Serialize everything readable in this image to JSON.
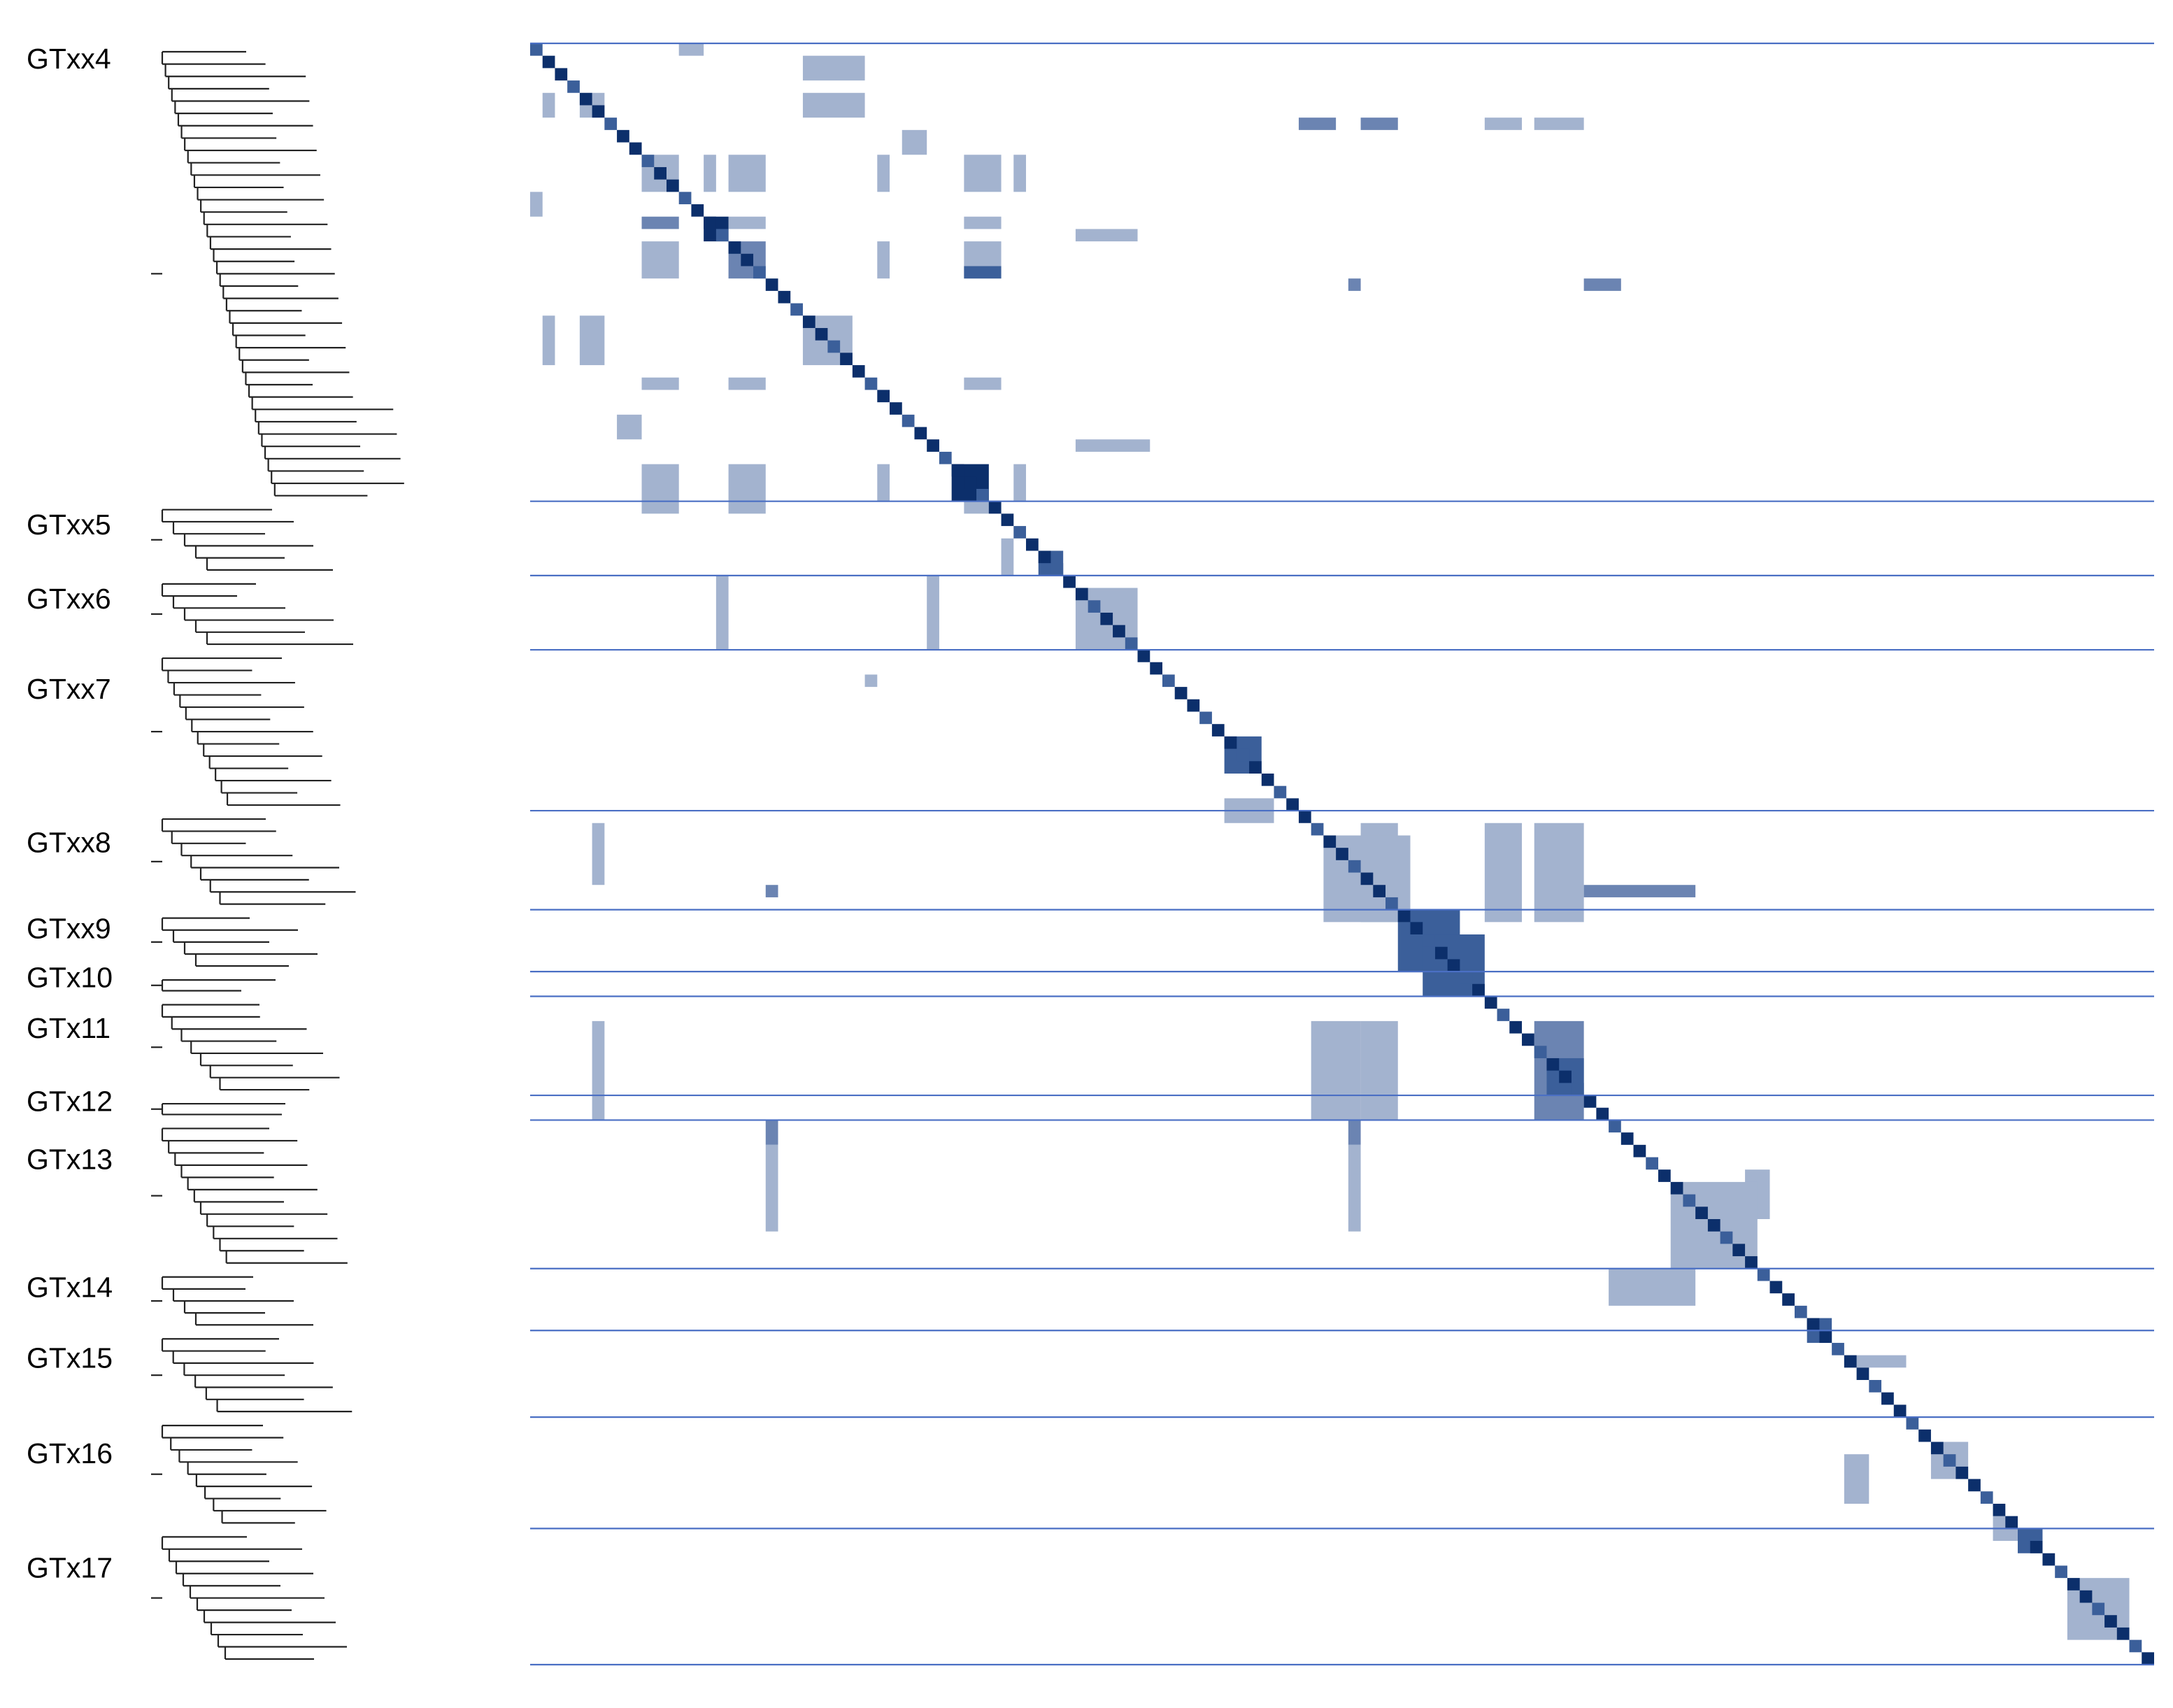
{
  "chart_data": {
    "type": "heatmap",
    "colors": {
      "strong": "#0c2f6b",
      "medium": "#3b5f9a",
      "light": "#6b84b2",
      "pale": "#a3b3cf",
      "separator": "#4a6fc4",
      "tree": "#222222"
    },
    "families": [
      {
        "label": "GTxx4",
        "members": 37
      },
      {
        "label": "GTxx5",
        "members": 6
      },
      {
        "label": "GTxx6",
        "members": 6
      },
      {
        "label": "GTxx7",
        "members": 13
      },
      {
        "label": "GTxx8",
        "members": 8
      },
      {
        "label": "GTxx9",
        "members": 5
      },
      {
        "label": "GTx10",
        "members": 2
      },
      {
        "label": "GTx11",
        "members": 8
      },
      {
        "label": "GTx12",
        "members": 2
      },
      {
        "label": "GTx13",
        "members": 12
      },
      {
        "label": "GTx14",
        "members": 5
      },
      {
        "label": "GTx15",
        "members": 7
      },
      {
        "label": "GTx16",
        "members": 9
      },
      {
        "label": "GTx17",
        "members": 11
      }
    ],
    "diagonal_blocks": [
      {
        "rows": [
          14,
          16
        ],
        "level": "strong"
      },
      {
        "rows": [
          34,
          37
        ],
        "level": "strong"
      },
      {
        "rows": [
          41,
          43
        ],
        "level": "medium"
      },
      {
        "rows": [
          44,
          49
        ],
        "level": "pale"
      },
      {
        "rows": [
          56,
          59
        ],
        "level": "medium"
      },
      {
        "rows": [
          64,
          71
        ],
        "level": "pale"
      },
      {
        "rows": [
          70,
          75
        ],
        "level": "medium"
      },
      {
        "rows": [
          72,
          77
        ],
        "level": "medium"
      },
      {
        "rows": [
          82,
          85
        ],
        "level": "medium"
      },
      {
        "rows": [
          92,
          99
        ],
        "level": "pale"
      },
      {
        "rows": [
          103,
          105
        ],
        "level": "medium"
      },
      {
        "rows": [
          113,
          116
        ],
        "level": "pale"
      },
      {
        "rows": [
          120,
          122
        ],
        "level": "medium"
      },
      {
        "rows": [
          124,
          129
        ],
        "level": "pale"
      }
    ],
    "off_diagonal_blocks": [
      {
        "rows": [
          0,
          1
        ],
        "cols": [
          12,
          14
        ],
        "level": "pale"
      },
      {
        "rows": [
          1,
          3
        ],
        "cols": [
          22,
          27
        ],
        "level": "pale"
      },
      {
        "rows": [
          4,
          6
        ],
        "cols": [
          22,
          27
        ],
        "level": "pale"
      },
      {
        "rows": [
          4,
          6
        ],
        "cols": [
          1,
          2
        ],
        "level": "pale"
      },
      {
        "rows": [
          4,
          6
        ],
        "cols": [
          4,
          6
        ],
        "level": "pale"
      },
      {
        "rows": [
          6,
          7
        ],
        "cols": [
          62,
          65
        ],
        "level": "light"
      },
      {
        "rows": [
          6,
          7
        ],
        "cols": [
          67,
          70
        ],
        "level": "light"
      },
      {
        "rows": [
          6,
          7
        ],
        "cols": [
          77,
          80
        ],
        "level": "pale"
      },
      {
        "rows": [
          6,
          7
        ],
        "cols": [
          81,
          85
        ],
        "level": "pale"
      },
      {
        "rows": [
          7,
          9
        ],
        "cols": [
          30,
          32
        ],
        "level": "pale"
      },
      {
        "rows": [
          9,
          12
        ],
        "cols": [
          9,
          12
        ],
        "level": "pale"
      },
      {
        "rows": [
          9,
          12
        ],
        "cols": [
          14,
          15
        ],
        "level": "pale"
      },
      {
        "rows": [
          9,
          12
        ],
        "cols": [
          16,
          19
        ],
        "level": "pale"
      },
      {
        "rows": [
          9,
          12
        ],
        "cols": [
          28,
          29
        ],
        "level": "pale"
      },
      {
        "rows": [
          9,
          12
        ],
        "cols": [
          35,
          38
        ],
        "level": "pale"
      },
      {
        "rows": [
          9,
          12
        ],
        "cols": [
          39,
          40
        ],
        "level": "pale"
      },
      {
        "rows": [
          12,
          14
        ],
        "cols": [
          0,
          1
        ],
        "level": "pale"
      },
      {
        "rows": [
          14,
          15
        ],
        "cols": [
          9,
          12
        ],
        "level": "light"
      },
      {
        "rows": [
          14,
          15
        ],
        "cols": [
          16,
          19
        ],
        "level": "pale"
      },
      {
        "rows": [
          14,
          15
        ],
        "cols": [
          35,
          38
        ],
        "level": "pale"
      },
      {
        "rows": [
          15,
          16
        ],
        "cols": [
          44,
          49
        ],
        "level": "pale"
      },
      {
        "rows": [
          16,
          19
        ],
        "cols": [
          9,
          12
        ],
        "level": "pale"
      },
      {
        "rows": [
          16,
          19
        ],
        "cols": [
          16,
          19
        ],
        "level": "light"
      },
      {
        "rows": [
          16,
          19
        ],
        "cols": [
          28,
          29
        ],
        "level": "pale"
      },
      {
        "rows": [
          16,
          19
        ],
        "cols": [
          35,
          38
        ],
        "level": "pale"
      },
      {
        "rows": [
          18,
          19
        ],
        "cols": [
          35,
          38
        ],
        "level": "medium"
      },
      {
        "rows": [
          19,
          20
        ],
        "cols": [
          66,
          67
        ],
        "level": "light"
      },
      {
        "rows": [
          19,
          20
        ],
        "cols": [
          85,
          88
        ],
        "level": "light"
      },
      {
        "rows": [
          22,
          26
        ],
        "cols": [
          1,
          2
        ],
        "level": "pale"
      },
      {
        "rows": [
          22,
          26
        ],
        "cols": [
          4,
          6
        ],
        "level": "pale"
      },
      {
        "rows": [
          22,
          26
        ],
        "cols": [
          22,
          26
        ],
        "level": "pale"
      },
      {
        "rows": [
          27,
          28
        ],
        "cols": [
          9,
          12
        ],
        "level": "pale"
      },
      {
        "rows": [
          27,
          28
        ],
        "cols": [
          16,
          19
        ],
        "level": "pale"
      },
      {
        "rows": [
          27,
          28
        ],
        "cols": [
          35,
          38
        ],
        "level": "pale"
      },
      {
        "rows": [
          30,
          32
        ],
        "cols": [
          7,
          9
        ],
        "level": "pale"
      },
      {
        "rows": [
          32,
          33
        ],
        "cols": [
          44,
          50
        ],
        "level": "pale"
      },
      {
        "rows": [
          34,
          37
        ],
        "cols": [
          9,
          12
        ],
        "level": "pale"
      },
      {
        "rows": [
          34,
          37
        ],
        "cols": [
          16,
          19
        ],
        "level": "pale"
      },
      {
        "rows": [
          34,
          37
        ],
        "cols": [
          28,
          29
        ],
        "level": "pale"
      },
      {
        "rows": [
          34,
          37
        ],
        "cols": [
          39,
          40
        ],
        "level": "pale"
      },
      {
        "rows": [
          37,
          38
        ],
        "cols": [
          9,
          12
        ],
        "level": "pale"
      },
      {
        "rows": [
          37,
          38
        ],
        "cols": [
          16,
          19
        ],
        "level": "pale"
      },
      {
        "rows": [
          37,
          38
        ],
        "cols": [
          35,
          38
        ],
        "level": "pale"
      },
      {
        "rows": [
          40,
          43
        ],
        "cols": [
          38,
          39
        ],
        "level": "pale"
      },
      {
        "rows": [
          43,
          49
        ],
        "cols": [
          15,
          16
        ],
        "level": "pale"
      },
      {
        "rows": [
          43,
          49
        ],
        "cols": [
          32,
          33
        ],
        "level": "pale"
      },
      {
        "rows": [
          51,
          52
        ],
        "cols": [
          27,
          28
        ],
        "level": "pale"
      },
      {
        "rows": [
          61,
          62
        ],
        "cols": [
          56,
          60
        ],
        "level": "pale"
      },
      {
        "rows": [
          62,
          63
        ],
        "cols": [
          56,
          60
        ],
        "level": "pale"
      },
      {
        "rows": [
          63,
          68
        ],
        "cols": [
          5,
          6
        ],
        "level": "pale"
      },
      {
        "rows": [
          68,
          69
        ],
        "cols": [
          19,
          20
        ],
        "level": "light"
      },
      {
        "rows": [
          63,
          71
        ],
        "cols": [
          67,
          70
        ],
        "level": "pale"
      },
      {
        "rows": [
          63,
          71
        ],
        "cols": [
          77,
          80
        ],
        "level": "pale"
      },
      {
        "rows": [
          63,
          71
        ],
        "cols": [
          81,
          85
        ],
        "level": "pale"
      },
      {
        "rows": [
          68,
          69
        ],
        "cols": [
          85,
          94
        ],
        "level": "light"
      },
      {
        "rows": [
          79,
          87
        ],
        "cols": [
          5,
          6
        ],
        "level": "pale"
      },
      {
        "rows": [
          79,
          87
        ],
        "cols": [
          63,
          67
        ],
        "level": "pale"
      },
      {
        "rows": [
          79,
          87
        ],
        "cols": [
          67,
          70
        ],
        "level": "pale"
      },
      {
        "rows": [
          79,
          87
        ],
        "cols": [
          81,
          85
        ],
        "level": "light"
      },
      {
        "rows": [
          87,
          89
        ],
        "cols": [
          19,
          20
        ],
        "level": "light"
      },
      {
        "rows": [
          87,
          89
        ],
        "cols": [
          66,
          67
        ],
        "level": "light"
      },
      {
        "rows": [
          89,
          96
        ],
        "cols": [
          19,
          20
        ],
        "level": "pale"
      },
      {
        "rows": [
          89,
          96
        ],
        "cols": [
          66,
          67
        ],
        "level": "pale"
      },
      {
        "rows": [
          91,
          95
        ],
        "cols": [
          98,
          100
        ],
        "level": "pale"
      },
      {
        "rows": [
          99,
          102
        ],
        "cols": [
          87,
          94
        ],
        "level": "pale"
      },
      {
        "rows": [
          106,
          107
        ],
        "cols": [
          106,
          111
        ],
        "level": "pale"
      },
      {
        "rows": [
          114,
          118
        ],
        "cols": [
          106,
          108
        ],
        "level": "pale"
      },
      {
        "rows": [
          119,
          121
        ],
        "cols": [
          118,
          120
        ],
        "level": "pale"
      }
    ]
  }
}
